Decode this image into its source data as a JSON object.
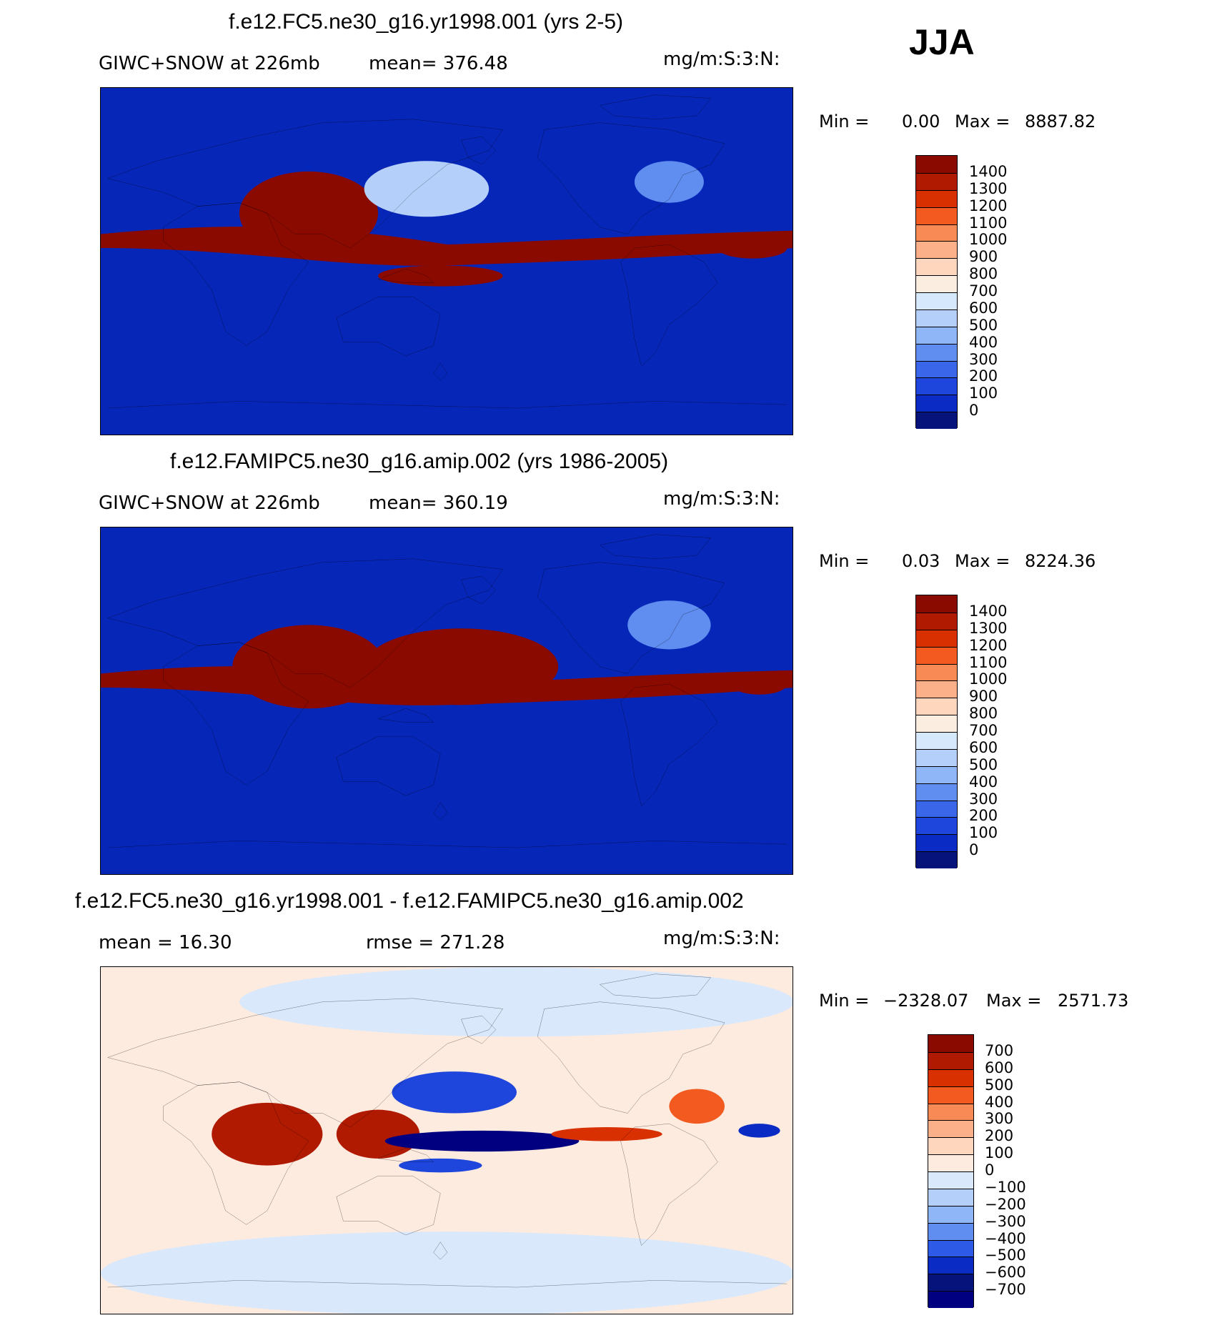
{
  "season": "JJA",
  "panels": [
    {
      "title": "f.e12.FC5.ne30_g16.yr1998.001 (yrs 2-5)",
      "left_text": "GIWC+SNOW at 226mb",
      "mid_text": "mean= 376.48",
      "units": "mg/m:S:3:N:",
      "min_label": "Min =",
      "min_value": "0.00",
      "max_label": "Max =",
      "max_value": "8887.82",
      "background": "#0626b8",
      "colorbar": {
        "labels": [
          "1400",
          "1300",
          "1200",
          "1100",
          "1000",
          "900",
          "800",
          "700",
          "600",
          "500",
          "400",
          "300",
          "200",
          "100",
          "0"
        ],
        "colors": [
          "#8b0a00",
          "#b01a00",
          "#d83000",
          "#f25a20",
          "#f88a55",
          "#fbb08a",
          "#fdd6bd",
          "#fbeee0",
          "#d6e8fb",
          "#b4d0fa",
          "#8fb6f6",
          "#5f8ef0",
          "#3a66ea",
          "#1e46dc",
          "#0a2cc4",
          "#05137a"
        ]
      },
      "features": [
        {
          "type": "ellipse",
          "color": "#8b0a00",
          "cx": 30,
          "cy": 36,
          "rx": 10,
          "ry": 12
        },
        {
          "type": "band",
          "color": "#8b0a00"
        },
        {
          "type": "ellipse",
          "color": "#f88a55",
          "cx": 44,
          "cy": 27,
          "rx": 5,
          "ry": 5
        },
        {
          "type": "ellipse",
          "color": "#b4d0fa",
          "cx": 47,
          "cy": 29,
          "rx": 9,
          "ry": 8
        },
        {
          "type": "ellipse",
          "color": "#8b0a00",
          "cx": 49,
          "cy": 54,
          "rx": 9,
          "ry": 3
        },
        {
          "type": "ellipse",
          "color": "#5f8ef0",
          "cx": 82,
          "cy": 27,
          "rx": 5,
          "ry": 6
        },
        {
          "type": "ellipse",
          "color": "#8b0a00",
          "cx": 94,
          "cy": 46,
          "rx": 5,
          "ry": 3
        }
      ]
    },
    {
      "title": "f.e12.FAMIPC5.ne30_g16.amip.002 (yrs 1986-2005)",
      "left_text": "GIWC+SNOW at 226mb",
      "mid_text": "mean= 360.19",
      "units": "mg/m:S:3:N:",
      "min_label": "Min =",
      "min_value": "0.03",
      "max_label": "Max =",
      "max_value": "8224.36",
      "background": "#0626b8",
      "colorbar": {
        "labels": [
          "1400",
          "1300",
          "1200",
          "1100",
          "1000",
          "900",
          "800",
          "700",
          "600",
          "500",
          "400",
          "300",
          "200",
          "100",
          "0"
        ],
        "colors": [
          "#8b0a00",
          "#b01a00",
          "#d83000",
          "#f25a20",
          "#f88a55",
          "#fbb08a",
          "#fdd6bd",
          "#fbeee0",
          "#d6e8fb",
          "#b4d0fa",
          "#8fb6f6",
          "#5f8ef0",
          "#3a66ea",
          "#1e46dc",
          "#0a2cc4",
          "#05137a"
        ]
      },
      "features": [
        {
          "type": "ellipse",
          "color": "#8b0a00",
          "cx": 30,
          "cy": 40,
          "rx": 11,
          "ry": 12
        },
        {
          "type": "band",
          "color": "#8b0a00"
        },
        {
          "type": "ellipse",
          "color": "#8b0a00",
          "cx": 52,
          "cy": 40,
          "rx": 14,
          "ry": 11
        },
        {
          "type": "ellipse",
          "color": "#5f8ef0",
          "cx": 82,
          "cy": 28,
          "rx": 6,
          "ry": 7
        },
        {
          "type": "ellipse",
          "color": "#8b0a00",
          "cx": 95,
          "cy": 45,
          "rx": 4,
          "ry": 3
        }
      ]
    },
    {
      "title": "f.e12.FC5.ne30_g16.yr1998.001 - f.e12.FAMIPC5.ne30_g16.amip.002",
      "left_text": "mean =   16.30",
      "mid_text": "rmse = 271.28",
      "units": "mg/m:S:3:N:",
      "min_label": "Min =",
      "min_value": "−2328.07",
      "max_label": "Max =",
      "max_value": "2571.73",
      "background": "#fdebe0",
      "colorbar": {
        "labels": [
          "700",
          "600",
          "500",
          "400",
          "300",
          "200",
          "100",
          "0",
          "−100",
          "−200",
          "−300",
          "−400",
          "−500",
          "−600",
          "−700"
        ],
        "colors": [
          "#8b0a00",
          "#b01a00",
          "#d83000",
          "#f25a20",
          "#f88a55",
          "#fbb08a",
          "#fdd6bd",
          "#fdebe0",
          "#d9e8fb",
          "#b4d0fa",
          "#8fb6f6",
          "#5f8ef0",
          "#2d5ae6",
          "#0a2cc4",
          "#05137a",
          "#000080"
        ]
      },
      "features": [
        {
          "type": "ellipse",
          "color": "#d9e8fb",
          "cx": 50,
          "cy": 88,
          "rx": 50,
          "ry": 12
        },
        {
          "type": "ellipse",
          "color": "#d9e8fb",
          "cx": 60,
          "cy": 10,
          "rx": 40,
          "ry": 10
        },
        {
          "type": "ellipse",
          "color": "#b01a00",
          "cx": 24,
          "cy": 48,
          "rx": 8,
          "ry": 9
        },
        {
          "type": "ellipse",
          "color": "#b01a00",
          "cx": 40,
          "cy": 48,
          "rx": 6,
          "ry": 7
        },
        {
          "type": "ellipse",
          "color": "#1e46dc",
          "cx": 51,
          "cy": 36,
          "rx": 9,
          "ry": 6
        },
        {
          "type": "ellipse",
          "color": "#000080",
          "cx": 55,
          "cy": 50,
          "rx": 14,
          "ry": 3
        },
        {
          "type": "ellipse",
          "color": "#d83000",
          "cx": 73,
          "cy": 48,
          "rx": 8,
          "ry": 2
        },
        {
          "type": "ellipse",
          "color": "#1e46dc",
          "cx": 49,
          "cy": 57,
          "rx": 6,
          "ry": 2
        },
        {
          "type": "ellipse",
          "color": "#f25a20",
          "cx": 86,
          "cy": 40,
          "rx": 4,
          "ry": 5
        },
        {
          "type": "ellipse",
          "color": "#0a2cc4",
          "cx": 95,
          "cy": 47,
          "rx": 3,
          "ry": 2
        }
      ]
    }
  ]
}
